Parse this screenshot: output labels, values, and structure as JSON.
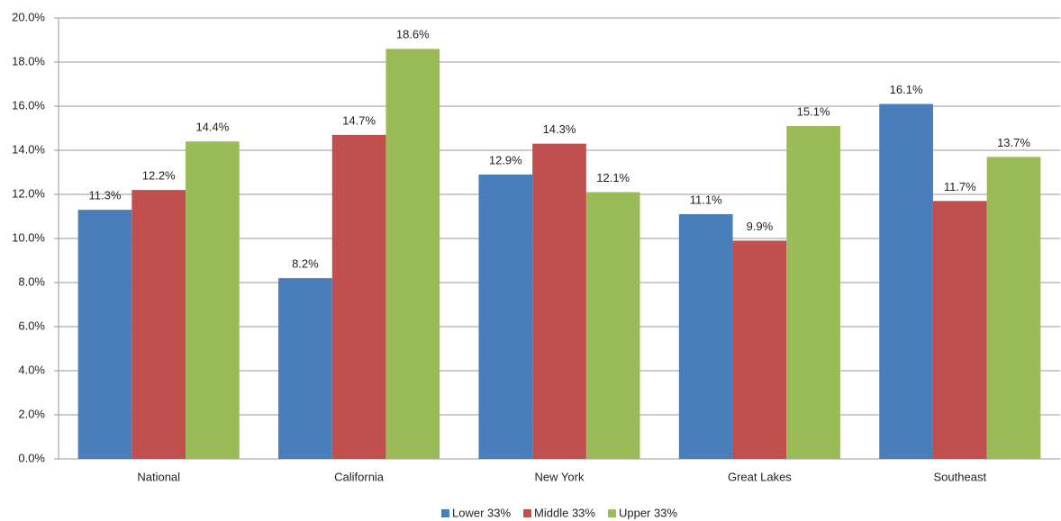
{
  "chart_data": {
    "type": "bar",
    "categories": [
      "National",
      "California",
      "New York",
      "Great Lakes",
      "Southeast"
    ],
    "series": [
      {
        "name": "Lower 33%",
        "color": "#4a7ebb",
        "values": [
          11.3,
          8.2,
          12.9,
          11.1,
          16.1
        ],
        "value_labels": [
          "11.3%",
          "8.2%",
          "12.9%",
          "11.1%",
          "16.1%"
        ]
      },
      {
        "name": "Middle 33%",
        "color": "#c0504d",
        "values": [
          12.2,
          14.7,
          14.3,
          9.9,
          11.7
        ],
        "value_labels": [
          "12.2%",
          "14.7%",
          "14.3%",
          "9.9%",
          "11.7%"
        ]
      },
      {
        "name": "Upper 33%",
        "color": "#9bbb59",
        "values": [
          14.4,
          18.6,
          12.1,
          15.1,
          13.7
        ],
        "value_labels": [
          "14.4%",
          "18.6%",
          "12.1%",
          "15.1%",
          "13.7%"
        ]
      }
    ],
    "ylim": [
      0,
      20
    ],
    "yticks": [
      {
        "value": 0,
        "label": "0.0%"
      },
      {
        "value": 2,
        "label": "2.0%"
      },
      {
        "value": 4,
        "label": "4.0%"
      },
      {
        "value": 6,
        "label": "6.0%"
      },
      {
        "value": 8,
        "label": "8.0%"
      },
      {
        "value": 10,
        "label": "10.0%"
      },
      {
        "value": 12,
        "label": "12.0%"
      },
      {
        "value": 14,
        "label": "14.0%"
      },
      {
        "value": 16,
        "label": "16.0%"
      },
      {
        "value": 18,
        "label": "18.0%"
      },
      {
        "value": 20,
        "label": "20.0%"
      }
    ],
    "grid": true,
    "legend": "bottom"
  }
}
